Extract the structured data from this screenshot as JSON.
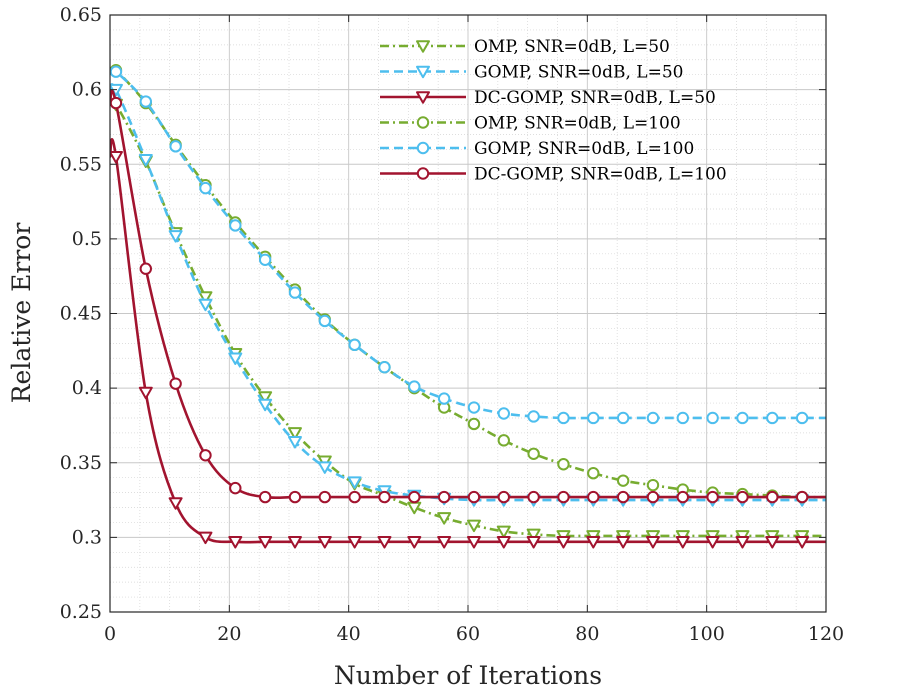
{
  "chart_data": {
    "type": "line",
    "title": "",
    "xlabel": "Number of Iterations",
    "ylabel": "Relative Error",
    "xlim": [
      0,
      120
    ],
    "ylim": [
      0.25,
      0.65
    ],
    "xticks": [
      0,
      20,
      40,
      60,
      80,
      100,
      120
    ],
    "yticks": [
      0.25,
      0.3,
      0.35,
      0.4,
      0.45,
      0.5,
      0.55,
      0.6,
      0.65
    ],
    "grid": true,
    "minor_grid": true,
    "legend_position": "top-right",
    "series": [
      {
        "name": "OMP, SNR=0dB, L=50",
        "color": "#77AC30",
        "line_style": "dashdot",
        "marker": "triangle-down",
        "x": [
          1,
          6,
          11,
          16,
          21,
          26,
          31,
          36,
          41,
          46,
          51,
          56,
          61,
          66,
          71,
          76,
          81,
          86,
          91,
          96,
          101,
          106,
          111,
          116
        ],
        "y": [
          0.59,
          0.552,
          0.504,
          0.461,
          0.423,
          0.394,
          0.37,
          0.351,
          0.336,
          0.328,
          0.32,
          0.313,
          0.308,
          0.304,
          0.302,
          0.301,
          0.301,
          0.301,
          0.301,
          0.301,
          0.301,
          0.301,
          0.301,
          0.301
        ]
      },
      {
        "name": "GOMP, SNR=0dB, L=50",
        "color": "#4DBEEE",
        "line_style": "dashed",
        "marker": "triangle-down",
        "x": [
          1,
          6,
          11,
          16,
          21,
          26,
          31,
          36,
          41,
          46,
          51,
          56,
          61,
          66,
          71,
          76,
          81,
          86,
          91,
          96,
          101,
          106,
          111,
          116
        ],
        "y": [
          0.6,
          0.553,
          0.502,
          0.456,
          0.42,
          0.389,
          0.364,
          0.347,
          0.337,
          0.331,
          0.328,
          0.326,
          0.325,
          0.325,
          0.325,
          0.325,
          0.325,
          0.325,
          0.325,
          0.325,
          0.325,
          0.325,
          0.325,
          0.325
        ]
      },
      {
        "name": "DC-GOMP, SNR=0dB, L=50",
        "color": "#A2142F",
        "line_style": "solid",
        "marker": "triangle-down",
        "x": [
          1,
          6,
          11,
          16,
          21,
          26,
          31,
          36,
          41,
          46,
          51,
          56,
          61,
          66,
          71,
          76,
          81,
          86,
          91,
          96,
          101,
          106,
          111,
          116
        ],
        "y": [
          0.555,
          0.397,
          0.323,
          0.3,
          0.297,
          0.297,
          0.297,
          0.297,
          0.297,
          0.297,
          0.297,
          0.297,
          0.297,
          0.297,
          0.297,
          0.297,
          0.297,
          0.297,
          0.297,
          0.297,
          0.297,
          0.297,
          0.297,
          0.297
        ]
      },
      {
        "name": "OMP, SNR=0dB, L=100",
        "color": "#77AC30",
        "line_style": "dashdot",
        "marker": "circle",
        "x": [
          1,
          6,
          11,
          16,
          21,
          26,
          31,
          36,
          41,
          46,
          51,
          56,
          61,
          66,
          71,
          76,
          81,
          86,
          91,
          96,
          101,
          106,
          111,
          116
        ],
        "y": [
          0.613,
          0.591,
          0.563,
          0.536,
          0.511,
          0.488,
          0.466,
          0.446,
          0.429,
          0.414,
          0.4,
          0.387,
          0.376,
          0.365,
          0.356,
          0.349,
          0.343,
          0.338,
          0.335,
          0.332,
          0.33,
          0.329,
          0.328,
          0.327
        ]
      },
      {
        "name": "GOMP, SNR=0dB, L=100",
        "color": "#4DBEEE",
        "line_style": "dashed",
        "marker": "circle",
        "x": [
          1,
          6,
          11,
          16,
          21,
          26,
          31,
          36,
          41,
          46,
          51,
          56,
          61,
          66,
          71,
          76,
          81,
          86,
          91,
          96,
          101,
          106,
          111,
          116
        ],
        "y": [
          0.612,
          0.592,
          0.562,
          0.534,
          0.509,
          0.486,
          0.464,
          0.445,
          0.429,
          0.414,
          0.401,
          0.393,
          0.387,
          0.383,
          0.381,
          0.38,
          0.38,
          0.38,
          0.38,
          0.38,
          0.38,
          0.38,
          0.38,
          0.38
        ]
      },
      {
        "name": "DC-GOMP, SNR=0dB, L=100",
        "color": "#A2142F",
        "line_style": "solid",
        "marker": "circle",
        "x": [
          1,
          6,
          11,
          16,
          21,
          26,
          31,
          36,
          41,
          46,
          51,
          56,
          61,
          66,
          71,
          76,
          81,
          86,
          91,
          96,
          101,
          106,
          111,
          116
        ],
        "y": [
          0.591,
          0.48,
          0.403,
          0.355,
          0.333,
          0.327,
          0.327,
          0.327,
          0.327,
          0.327,
          0.327,
          0.327,
          0.327,
          0.327,
          0.327,
          0.327,
          0.327,
          0.327,
          0.327,
          0.327,
          0.327,
          0.327,
          0.327,
          0.327
        ]
      }
    ]
  }
}
